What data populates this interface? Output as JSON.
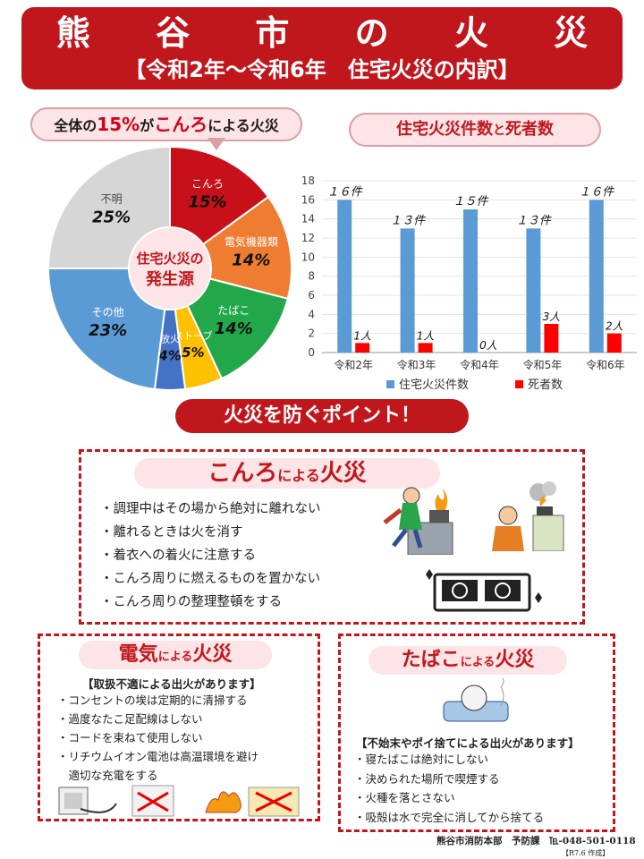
{
  "header": {
    "title": "熊 谷 市 の 火 災",
    "subtitle": "【令和2年～令和6年　住宅火災の内訳】"
  },
  "pie_label": {
    "prefix": "全体の",
    "percent": "15%",
    "middle": "が",
    "cause": "こんろ",
    "suffix": "による火災"
  },
  "pie_center": {
    "line1": "住宅火災の",
    "line2": "発生源"
  },
  "bar_label": {
    "text1": "住宅火災件数",
    "text2": "と",
    "text3": "死者数"
  },
  "chart_data": [
    {
      "type": "pie",
      "slices": [
        {
          "name": "こんろ",
          "value": 15,
          "label": "15%",
          "color": "#c8101a"
        },
        {
          "name": "電気機器類",
          "value": 14,
          "label": "14%",
          "color": "#ee7d31"
        },
        {
          "name": "たばこ",
          "value": 14,
          "label": "14%",
          "color": "#22a74a"
        },
        {
          "name": "ストーブ",
          "value": 5,
          "label": "5%",
          "color": "#ffc000"
        },
        {
          "name": "放火",
          "value": 4,
          "label": "4%",
          "color": "#4472c4"
        },
        {
          "name": "その他",
          "value": 23,
          "label": "23%",
          "color": "#5b9bd5"
        },
        {
          "name": "不明",
          "value": 25,
          "label": "25%",
          "color": "#d6d6d6"
        }
      ]
    },
    {
      "type": "bar",
      "categories": [
        "令和2年",
        "令和3年",
        "令和4年",
        "令和5年",
        "令和6年"
      ],
      "series": [
        {
          "name": "住宅火災件数",
          "values": [
            16,
            13,
            15,
            13,
            16
          ],
          "labels": [
            "１６件",
            "１３件",
            "１５件",
            "１３件",
            "１６件"
          ],
          "color": "#5b9bd5"
        },
        {
          "name": "死者数",
          "values": [
            1,
            1,
            0,
            3,
            2
          ],
          "labels": [
            "1人",
            "1人",
            "0人",
            "3人",
            "2人"
          ],
          "color": "#ff0000"
        }
      ],
      "ylim": [
        0,
        18
      ],
      "yticks": [
        "0",
        "2",
        "4",
        "6",
        "8",
        "10",
        "12",
        "14",
        "16",
        "18"
      ],
      "legend": "bottom"
    }
  ],
  "prevent": {
    "title": "火災を防ぐポイント！"
  },
  "konro": {
    "title": "こんろ",
    "title_suffix": "による",
    "title_tail": "火災",
    "items": [
      "・調理中はその場から絶対に離れない",
      "・離れるときは火を消す",
      "・着衣への着火に注意する",
      "・こんろ周りに燃えるものを置かない",
      "・こんろ周りの整理整頓をする"
    ]
  },
  "denki": {
    "title": "電気",
    "title_suffix": "による",
    "title_tail": "火災",
    "note": "【取扱不適による出火があります】",
    "items": [
      "・コンセントの埃は定期的に清掃する",
      "・過度なたこ足配線はしない",
      "・コードを束ねて使用しない",
      "・リチウムイオン電池は高温環境を避け",
      "　適切な充電をする"
    ]
  },
  "tabako": {
    "title": "たばこ",
    "title_suffix": "による",
    "title_tail": "火災",
    "note": "【不始末やポイ捨てによる出火があります】",
    "items": [
      "・寝たばこは絶対にしない",
      "・決められた場所で喫煙する",
      "・火種を落とさない",
      "・吸殻は水で完全に消してから捨てる"
    ]
  },
  "footer": {
    "org": "熊谷市消防本部　予防課　℡-048-501-0118",
    "date": "【R7.6 作成】"
  }
}
